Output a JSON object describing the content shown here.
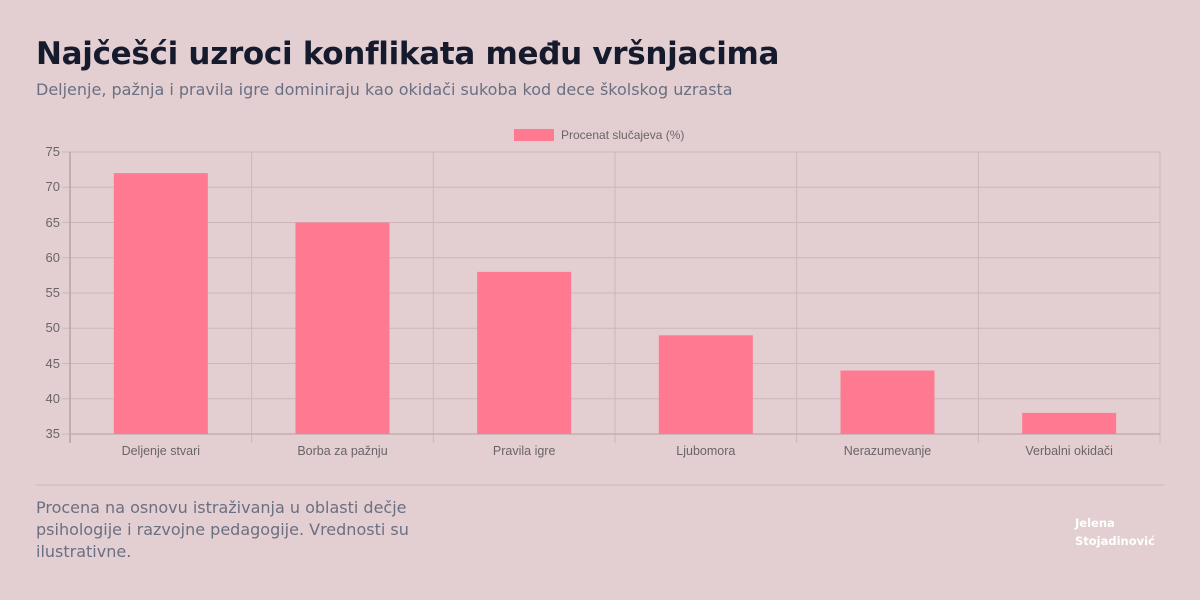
{
  "header": {
    "title": "Najčešći uzroci konflikata među vršnjacima",
    "subtitle": "Deljenje, pažnja i pravila igre dominiraju kao okidači sukoba kod dece školskog uzrasta"
  },
  "legend": {
    "label": "Procenat slučajeva (%)"
  },
  "colors": {
    "bar": "#ff7a90",
    "grid": "#cdb6ba",
    "background": "#e3cfd1"
  },
  "chart_data": {
    "type": "bar",
    "title": "Najčešći uzroci konflikata među vršnjacima",
    "subtitle": "Deljenje, pažnja i pravila igre dominiraju kao okidači sukoba kod dece školskog uzrasta",
    "categories": [
      "Deljenje stvari",
      "Borba za pažnju",
      "Pravila igre",
      "Ljubomora",
      "Nerazumevanje",
      "Verbalni okidači"
    ],
    "series": [
      {
        "name": "Procenat slučajeva (%)",
        "values": [
          72,
          65,
          58,
          49,
          44,
          38
        ]
      }
    ],
    "xlabel": "",
    "ylabel": "",
    "ylim": [
      35,
      75
    ],
    "yticks": [
      35,
      40,
      45,
      50,
      55,
      60,
      65,
      70,
      75
    ],
    "grid": true,
    "legend_position": "top"
  },
  "footer": {
    "note": "Procena na osnovu istraživanja u oblasti dečje psihologije i razvojne pedagogije. Vrednosti su ilustrativne.",
    "author_line1": "Jelena",
    "author_line2": "Stojadinović"
  }
}
